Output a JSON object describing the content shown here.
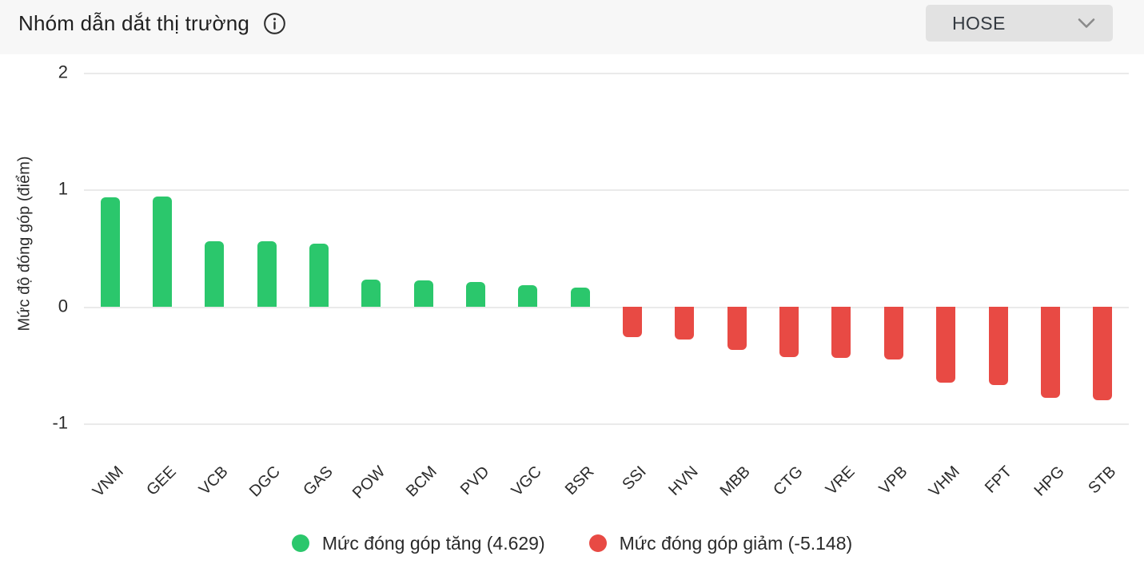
{
  "header": {
    "title": "Nhóm dẫn dắt thị trường",
    "exchange_selector": {
      "value": "HOSE"
    }
  },
  "chart_data": {
    "type": "bar",
    "title": "Nhóm dẫn dắt thị trường",
    "xlabel": "",
    "ylabel": "Mức độ đóng góp (điểm)",
    "ylim": [
      -1.1,
      2.14
    ],
    "yticks": [
      2,
      1,
      0,
      -1
    ],
    "grid": true,
    "legend_position": "bottom",
    "categories": [
      "VNM",
      "GEE",
      "VCB",
      "DGC",
      "GAS",
      "POW",
      "BCM",
      "PVD",
      "VGC",
      "BSR",
      "SSI",
      "HVN",
      "MBB",
      "CTG",
      "VRE",
      "VPB",
      "VHM",
      "FPT",
      "HPG",
      "STB"
    ],
    "values": [
      0.93,
      0.94,
      0.56,
      0.56,
      0.54,
      0.23,
      0.22,
      0.21,
      0.18,
      0.16,
      -0.26,
      -0.28,
      -0.37,
      -0.43,
      -0.44,
      -0.45,
      -0.65,
      -0.67,
      -0.78,
      -0.8
    ],
    "colors": {
      "positive": "#2bc76c",
      "negative": "#e84a44"
    },
    "legend": [
      {
        "label": "Mức đóng góp tăng (4.629)",
        "color": "#2bc76c",
        "total": 4.629
      },
      {
        "label": "Mức đóng góp giảm (-5.148)",
        "color": "#e84a44",
        "total": -5.148
      }
    ]
  }
}
